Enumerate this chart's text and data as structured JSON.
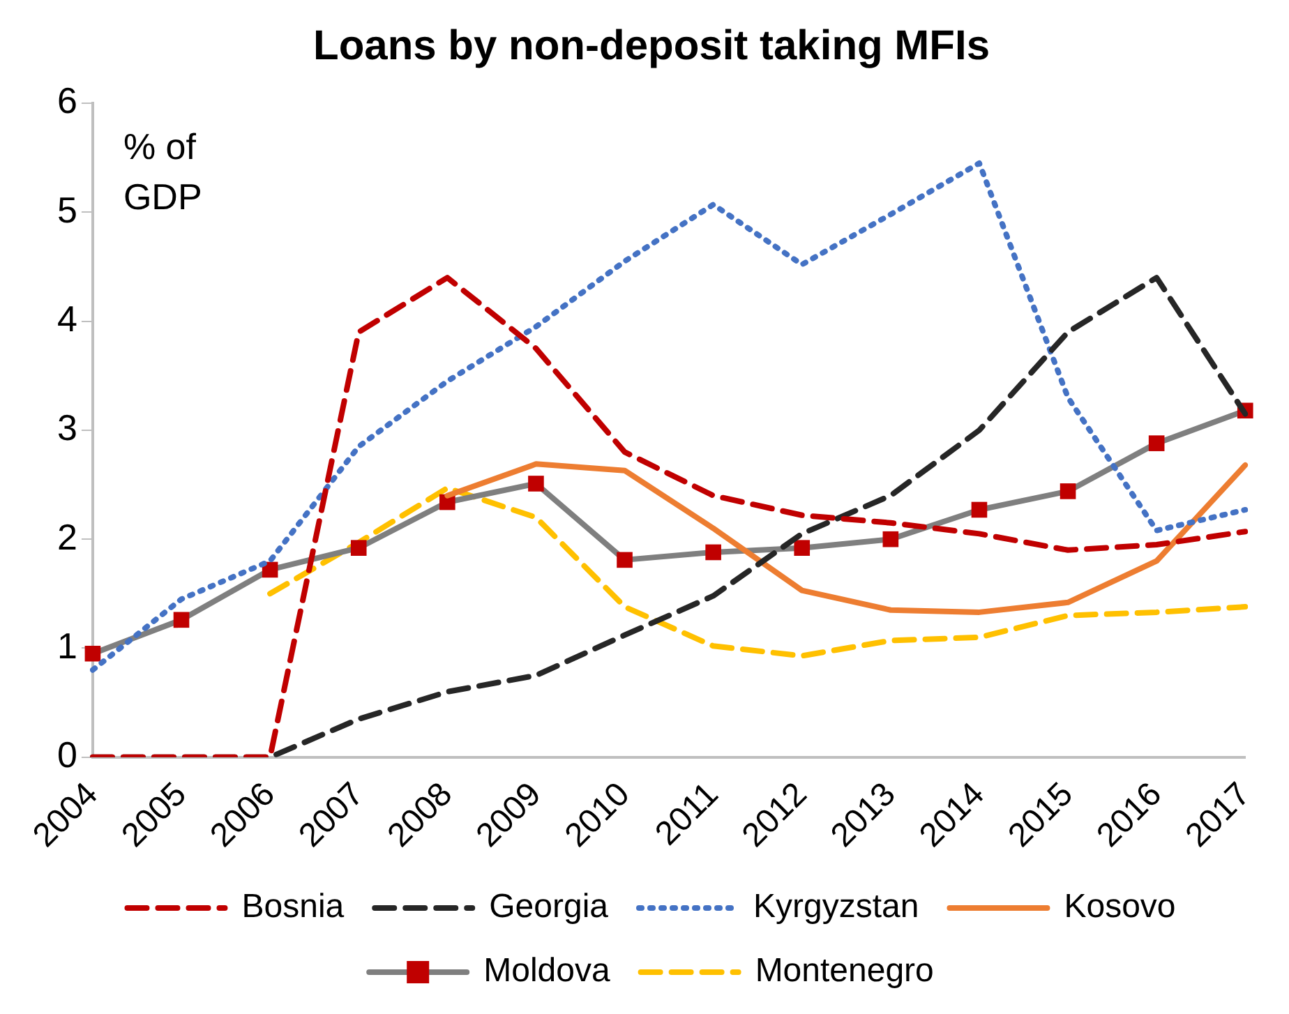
{
  "chart_data": {
    "type": "line",
    "title": "Loans by non-deposit taking MFIs",
    "annotations": [
      "% of GDP"
    ],
    "categories": [
      "2004",
      "2005",
      "2006",
      "2007",
      "2008",
      "2009",
      "2010",
      "2011",
      "2012",
      "2013",
      "2014",
      "2015",
      "2016",
      "2017"
    ],
    "ylim": [
      0,
      6
    ],
    "yticks": [
      0,
      1,
      2,
      3,
      4,
      5,
      6
    ],
    "grid": false,
    "legend": "bottom",
    "series": [
      {
        "name": "Bosnia",
        "color": "#c00000",
        "line_style": "dashed",
        "marker": "none",
        "values": [
          0,
          0,
          0,
          3.9,
          4.4,
          3.75,
          2.8,
          2.4,
          2.22,
          2.15,
          2.05,
          1.9,
          1.95,
          2.07
        ]
      },
      {
        "name": "Georgia",
        "color": "#262626",
        "line_style": "dashed",
        "marker": "none",
        "values": [
          0,
          0,
          0,
          0.35,
          0.6,
          0.75,
          1.12,
          1.48,
          2.05,
          2.4,
          3.0,
          3.9,
          4.4,
          3.15
        ]
      },
      {
        "name": "Kyrgyzstan",
        "color": "#4472c4",
        "line_style": "dotted",
        "marker": "none",
        "values": [
          0.8,
          1.45,
          1.8,
          2.85,
          3.45,
          3.95,
          4.55,
          5.07,
          4.52,
          4.98,
          5.45,
          3.3,
          2.08,
          2.27
        ]
      },
      {
        "name": "Kosovo",
        "color": "#ed7d31",
        "line_style": "solid",
        "marker": "none",
        "values": [
          null,
          null,
          null,
          null,
          2.4,
          2.69,
          2.63,
          2.1,
          1.53,
          1.35,
          1.33,
          1.42,
          1.8,
          2.68
        ]
      },
      {
        "name": "Moldova",
        "color": "#7f7f7f",
        "colors": [
          "#c00000",
          "#c00000",
          "#c00000",
          "#c00000",
          "#c00000",
          "#c00000",
          "#c00000",
          "#c00000",
          "#c00000",
          "#c00000",
          "#c00000",
          "#c00000",
          "#c00000",
          "#c00000"
        ],
        "line_style": "solid",
        "marker": "square",
        "values": [
          0.95,
          1.26,
          1.72,
          1.92,
          2.34,
          2.51,
          1.81,
          1.88,
          1.92,
          2.0,
          2.27,
          2.44,
          2.88,
          3.18
        ]
      },
      {
        "name": "Montenegro",
        "color": "#ffc000",
        "line_style": "dashed",
        "marker": "none",
        "values": [
          null,
          null,
          1.5,
          1.97,
          2.47,
          2.2,
          1.38,
          1.02,
          0.93,
          1.07,
          1.1,
          1.3,
          1.33,
          1.38
        ]
      }
    ]
  }
}
